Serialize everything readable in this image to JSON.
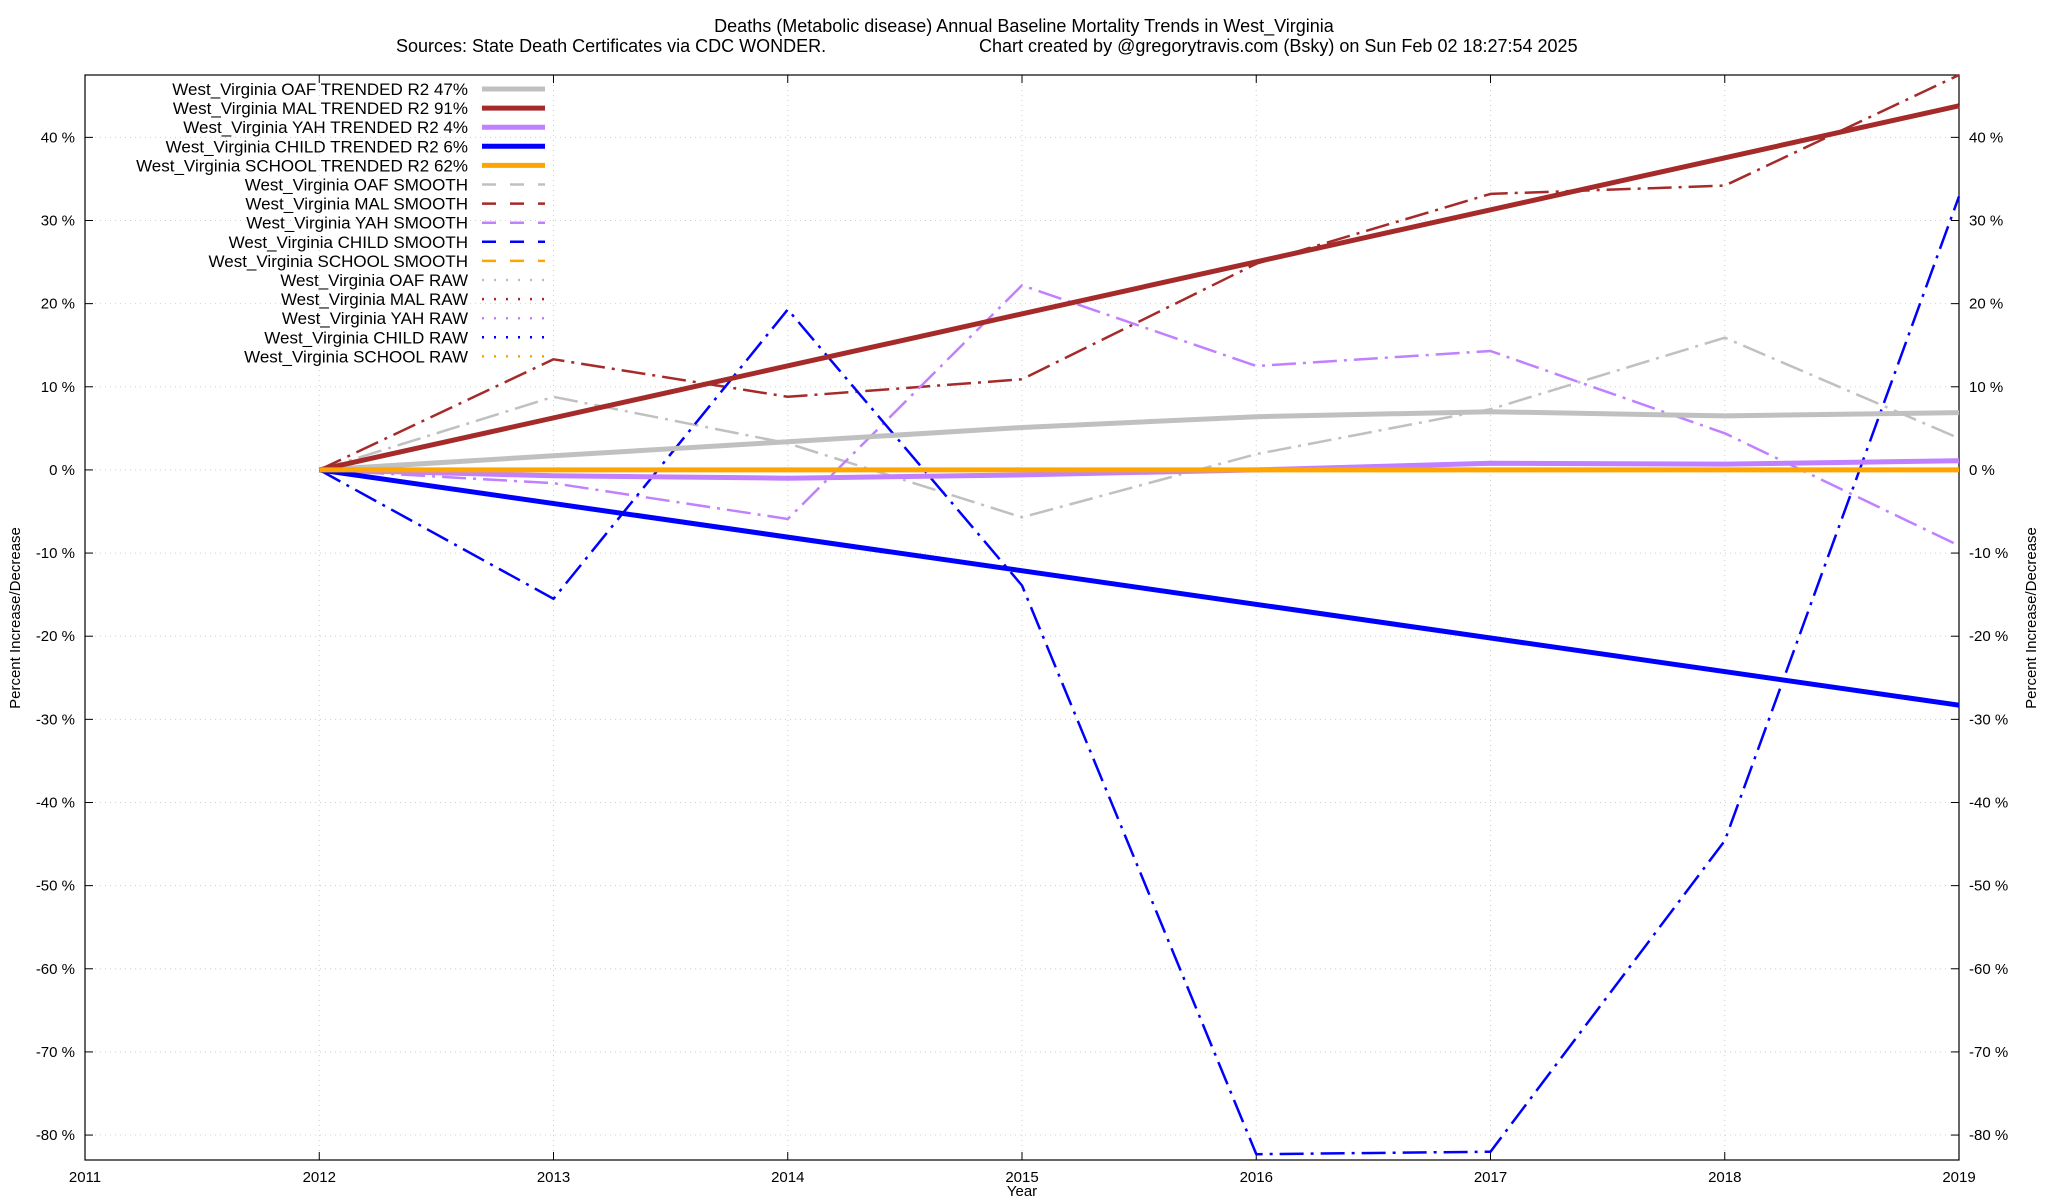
{
  "chart_data": {
    "type": "line",
    "title": "Deaths (Metabolic disease)  Annual Baseline Mortality Trends in West_Virginia",
    "subtitle_left": "Sources: State Death Certificates via CDC WONDER.",
    "subtitle_right": "Chart created by @gregorytravis.com (Bsky) on Sun Feb 02 18:27:54 2025",
    "xlabel": "Year",
    "ylabel_left": "Percent Increase/Decrease",
    "ylabel_right": "Percent Increase/Decrease",
    "xlim": [
      2011,
      2019
    ],
    "ylim": [
      -83,
      47.5
    ],
    "x_ticks": [
      "2011",
      "2012",
      "2013",
      "2014",
      "2015",
      "2016",
      "2017",
      "2018",
      "2019"
    ],
    "y_ticks": [
      {
        "v": 40,
        "label": "40 %"
      },
      {
        "v": 30,
        "label": "30 %"
      },
      {
        "v": 20,
        "label": "20 %"
      },
      {
        "v": 10,
        "label": "10 %"
      },
      {
        "v": 0,
        "label": "0 %"
      },
      {
        "v": -10,
        "label": "-10 %"
      },
      {
        "v": -20,
        "label": "-20 %"
      },
      {
        "v": -30,
        "label": "-30 %"
      },
      {
        "v": -40,
        "label": "-40 %"
      },
      {
        "v": -50,
        "label": "-50 %"
      },
      {
        "v": -60,
        "label": "-60 %"
      },
      {
        "v": -70,
        "label": "-70 %"
      },
      {
        "v": -80,
        "label": "-80 %"
      }
    ],
    "grid": true,
    "legend_position": "top-left",
    "series": [
      {
        "name": "West_Virginia OAF TRENDED R2  47%",
        "style": "trend",
        "color": "#c0c0c0",
        "x": [
          2012,
          2013,
          2014,
          2015,
          2016,
          2017,
          2018,
          2019
        ],
        "values": [
          0,
          1.7,
          3.4,
          5.1,
          6.4,
          7.0,
          6.5,
          6.9
        ]
      },
      {
        "name": "West_Virginia MAL TRENDED R2  91%",
        "style": "trend",
        "color": "#a52a2a",
        "x": [
          2012,
          2019
        ],
        "values": [
          0,
          43.8
        ]
      },
      {
        "name": "West_Virginia YAH TRENDED R2   4%",
        "style": "trend",
        "color": "#c080ff",
        "x": [
          2012,
          2013,
          2014,
          2015,
          2016,
          2017,
          2018,
          2019
        ],
        "values": [
          0,
          -0.7,
          -1.0,
          -0.6,
          0.0,
          0.8,
          0.7,
          1.1
        ]
      },
      {
        "name": "West_Virginia CHILD TRENDED R2   6%",
        "style": "trend",
        "color": "#0000ff",
        "x": [
          2012,
          2019
        ],
        "values": [
          0,
          -28.3
        ]
      },
      {
        "name": "West_Virginia SCHOOL TRENDED R2  62%",
        "style": "trend",
        "color": "#ffa500",
        "x": [
          2012,
          2019
        ],
        "values": [
          0,
          0
        ]
      },
      {
        "name": "West_Virginia OAF SMOOTH",
        "style": "smooth",
        "color": "#c0c0c0",
        "x": [
          2012,
          2013,
          2014,
          2015,
          2016,
          2017,
          2018,
          2019
        ],
        "values": [
          0,
          8.8,
          3.2,
          -5.7,
          1.9,
          7.3,
          15.9,
          3.8
        ]
      },
      {
        "name": "West_Virginia MAL SMOOTH",
        "style": "smooth",
        "color": "#a52a2a",
        "x": [
          2012,
          2013,
          2014,
          2015,
          2016,
          2017,
          2018,
          2019
        ],
        "values": [
          0,
          13.3,
          8.8,
          10.9,
          24.8,
          33.2,
          34.2,
          47.5
        ]
      },
      {
        "name": "West_Virginia YAH SMOOTH",
        "style": "smooth",
        "color": "#c080ff",
        "x": [
          2012,
          2013,
          2014,
          2015,
          2016,
          2017,
          2018,
          2019
        ],
        "values": [
          0,
          -1.6,
          -5.9,
          22.2,
          12.5,
          14.3,
          4.4,
          -9.1
        ]
      },
      {
        "name": "West_Virginia CHILD SMOOTH",
        "style": "smooth",
        "color": "#0000ff",
        "x": [
          2012,
          2013,
          2014,
          2015,
          2016,
          2017,
          2018,
          2019
        ],
        "values": [
          0,
          -15.5,
          19.3,
          -13.9,
          -82.3,
          -82.0,
          -44.6,
          32.9
        ]
      },
      {
        "name": "West_Virginia SCHOOL SMOOTH",
        "style": "smooth",
        "color": "#ffa500",
        "x": [
          2012,
          2019
        ],
        "values": [
          0,
          0
        ]
      },
      {
        "name": "West_Virginia OAF RAW",
        "style": "raw",
        "color": "#c0c0c0",
        "x": [],
        "values": []
      },
      {
        "name": "West_Virginia MAL RAW",
        "style": "raw",
        "color": "#a52a2a",
        "x": [],
        "values": []
      },
      {
        "name": "West_Virginia YAH RAW",
        "style": "raw",
        "color": "#c080ff",
        "x": [],
        "values": []
      },
      {
        "name": "West_Virginia CHILD RAW",
        "style": "raw",
        "color": "#0000ff",
        "x": [],
        "values": []
      },
      {
        "name": "West_Virginia SCHOOL RAW",
        "style": "raw",
        "color": "#ffa500",
        "x": [],
        "values": []
      }
    ]
  }
}
